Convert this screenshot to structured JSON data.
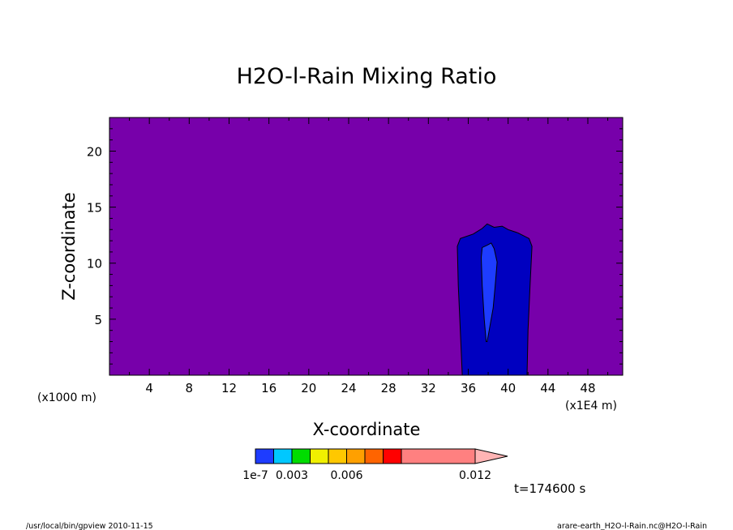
{
  "chart_data": {
    "type": "heatmap",
    "title": "H2O-l-Rain Mixing Ratio",
    "xlabel": "X-coordinate",
    "ylabel": "Z-coordinate",
    "x_unit": "(x1E4 m)",
    "y_unit": "(x1000 m)",
    "xlim": [
      0,
      51.5
    ],
    "ylim": [
      0,
      23
    ],
    "x_ticks": [
      4,
      8,
      12,
      16,
      20,
      24,
      28,
      32,
      36,
      40,
      44,
      48
    ],
    "y_ticks": [
      5,
      10,
      15,
      20
    ],
    "background_color": "#7700aa",
    "regions": [
      {
        "level": "1e-7",
        "color": "#0000c0",
        "outline": [
          [
            35.4,
            0
          ],
          [
            35.2,
            4
          ],
          [
            35,
            8
          ],
          [
            34.9,
            11.5
          ],
          [
            35.2,
            12.2
          ],
          [
            36.5,
            12.6
          ],
          [
            37.4,
            13.1
          ],
          [
            37.9,
            13.5
          ],
          [
            38.6,
            13.2
          ],
          [
            39.4,
            13.3
          ],
          [
            40,
            13
          ],
          [
            41,
            12.7
          ],
          [
            42.1,
            12.2
          ],
          [
            42.4,
            11.5
          ],
          [
            42.2,
            8
          ],
          [
            42,
            4
          ],
          [
            41.9,
            0
          ]
        ]
      },
      {
        "level": "0.003",
        "color": "#1e3cff",
        "outline": [
          [
            37.8,
            3
          ],
          [
            37.6,
            5
          ],
          [
            37.4,
            8
          ],
          [
            37.3,
            10.5
          ],
          [
            37.4,
            11.4
          ],
          [
            37.9,
            11.6
          ],
          [
            38.3,
            11.8
          ],
          [
            38.6,
            11.3
          ],
          [
            38.9,
            10.1
          ],
          [
            38.7,
            8
          ],
          [
            38.5,
            6
          ],
          [
            38.1,
            4
          ],
          [
            37.9,
            3
          ]
        ]
      }
    ],
    "colorbar": {
      "labels": [
        "1e-7",
        "0.003",
        "0.006",
        "0.012"
      ],
      "colors": [
        "#1e3cff",
        "#00c8ff",
        "#00dc00",
        "#f0f000",
        "#ffc800",
        "#ffa000",
        "#ff6400",
        "#ff0000",
        "#ff8080",
        "#ffb4b4"
      ]
    },
    "time_label": "t=174600 s"
  },
  "footer": {
    "left": "/usr/local/bin/gpview  2010-11-15",
    "right": "arare-earth_H2O-l-Rain.nc@H2O-l-Rain"
  }
}
